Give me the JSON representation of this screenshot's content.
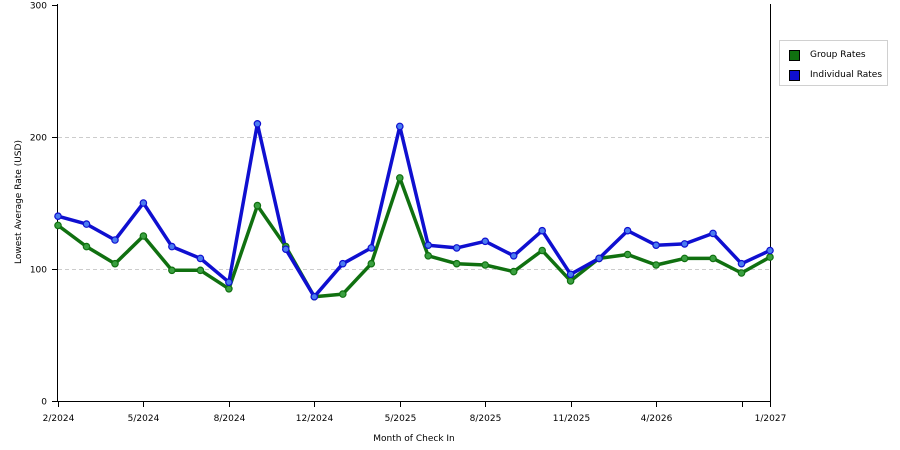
{
  "chart_data": {
    "type": "line",
    "xlabel": "Month of Check In",
    "ylabel": "Lowest Average Rate (USD)",
    "ylim": [
      0,
      300
    ],
    "yticks": [
      0,
      100,
      200,
      300
    ],
    "x_tick_labels": [
      "2/2024",
      "5/2024",
      "8/2024",
      "12/2024",
      "5/2025",
      "8/2025",
      "11/2025",
      "4/2026",
      "",
      "1/2027"
    ],
    "grid": "horizontal dashed",
    "legend_position": "right",
    "series": [
      {
        "name": "Group Rates",
        "color": "#107010",
        "values": [
          133,
          117,
          104,
          125,
          99,
          99,
          85,
          148,
          117,
          79,
          81,
          104,
          169,
          110,
          104,
          103,
          98,
          114,
          91,
          108,
          111,
          103,
          108,
          108,
          97,
          109
        ]
      },
      {
        "name": "Individual Rates",
        "color": "#0f0fd0",
        "values": [
          140,
          134,
          122,
          150,
          117,
          108,
          90,
          210,
          115,
          79,
          104,
          116,
          208,
          118,
          116,
          121,
          110,
          129,
          96,
          108,
          129,
          118,
          119,
          127,
          104,
          114
        ]
      }
    ]
  }
}
